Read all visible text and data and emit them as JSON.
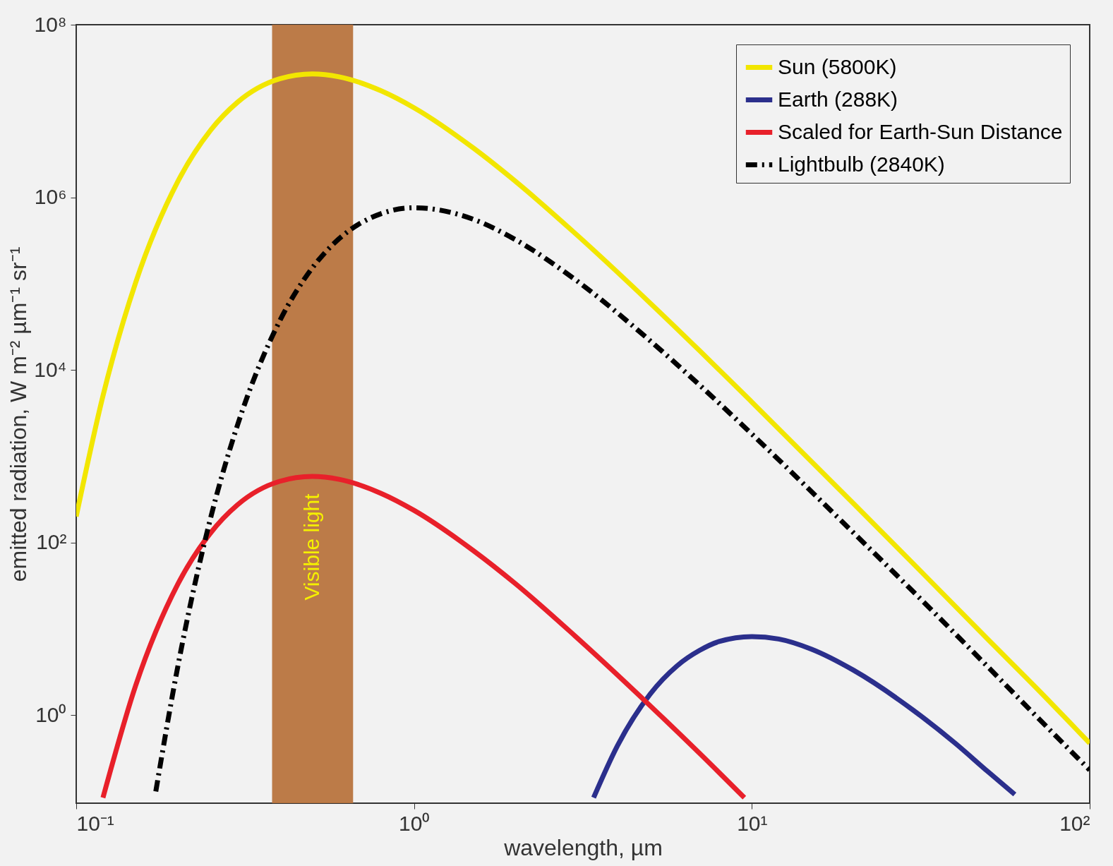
{
  "chart_data": {
    "type": "line",
    "xlabel": "wavelength, µm",
    "ylabel": "emitted radiation, W m⁻² µm⁻¹ sr⁻¹",
    "log": "xy",
    "grid": false,
    "legend": "top right",
    "xlim": [
      0.1,
      100
    ],
    "ylim": [
      0.095,
      100000000
    ],
    "xticks": [
      {
        "value": 0.1,
        "label": "10⁻¹"
      },
      {
        "value": 1,
        "label": "10⁰"
      },
      {
        "value": 10,
        "label": "10¹"
      },
      {
        "value": 100,
        "label": "10²"
      }
    ],
    "yticks": [
      {
        "value": 1,
        "label": "10⁰"
      },
      {
        "value": 100,
        "label": "10²"
      },
      {
        "value": 10000,
        "label": "10⁴"
      },
      {
        "value": 1000000,
        "label": "10⁶"
      },
      {
        "value": 100000000,
        "label": "10⁸"
      }
    ],
    "bands": [
      {
        "axis": "x",
        "from": 0.38,
        "to": 0.66,
        "label": "Visible light",
        "color": "#b8743e"
      }
    ],
    "series": [
      {
        "name": "Sun (5800K)",
        "color": "#f2e600",
        "line_style": "solid",
        "x": [
          0.1,
          0.12,
          0.15,
          0.2,
          0.25,
          0.3,
          0.4,
          0.5,
          0.6,
          0.8,
          1,
          1.5,
          2,
          3,
          5,
          7,
          10,
          20,
          30,
          50,
          70,
          100
        ],
        "values": [
          200,
          5000,
          103000,
          1530000,
          6000000,
          12600000,
          23600000,
          26900000,
          24900000,
          17100000,
          10900000,
          3710000,
          1520000,
          381000,
          59400,
          16700,
          4230,
          282,
          57,
          7.5,
          2.0,
          0.47
        ]
      },
      {
        "name": "Earth (288K)",
        "color": "#2b2f8c",
        "line_style": "solid",
        "x": [
          3.4,
          4,
          5,
          6,
          7,
          8,
          10,
          12,
          15,
          20,
          30,
          40,
          50,
          60
        ],
        "values": [
          0.11,
          0.44,
          1.75,
          3.7,
          5.6,
          7.1,
          8.1,
          7.6,
          5.8,
          3.3,
          1.14,
          0.47,
          0.22,
          0.12
        ]
      },
      {
        "name": "Scaled for Earth-Sun Distance",
        "color": "#e8202a",
        "line_style": "solid",
        "x": [
          0.12,
          0.15,
          0.2,
          0.25,
          0.3,
          0.4,
          0.5,
          0.6,
          0.8,
          1,
          1.5,
          2,
          3,
          5,
          7,
          9.5
        ],
        "values": [
          0.11,
          2.2,
          33,
          129,
          272,
          510,
          581,
          538,
          369,
          235,
          80,
          33,
          8.2,
          1.28,
          0.36,
          0.11
        ]
      },
      {
        "name": "Lightbulb (2840K)",
        "color": "#000000",
        "line_style": "dashed",
        "x": [
          0.172,
          0.2,
          0.25,
          0.3,
          0.4,
          0.5,
          0.6,
          0.8,
          1,
          1.5,
          2,
          3,
          5,
          7,
          10,
          20,
          30,
          50,
          70,
          100
        ],
        "values": [
          0.13,
          3.7,
          193,
          2270,
          36700,
          152000,
          331000,
          647000,
          756000,
          554000,
          321000,
          111000,
          21700,
          6670,
          1800,
          129,
          27,
          3.6,
          0.94,
          0.23
        ]
      }
    ]
  }
}
